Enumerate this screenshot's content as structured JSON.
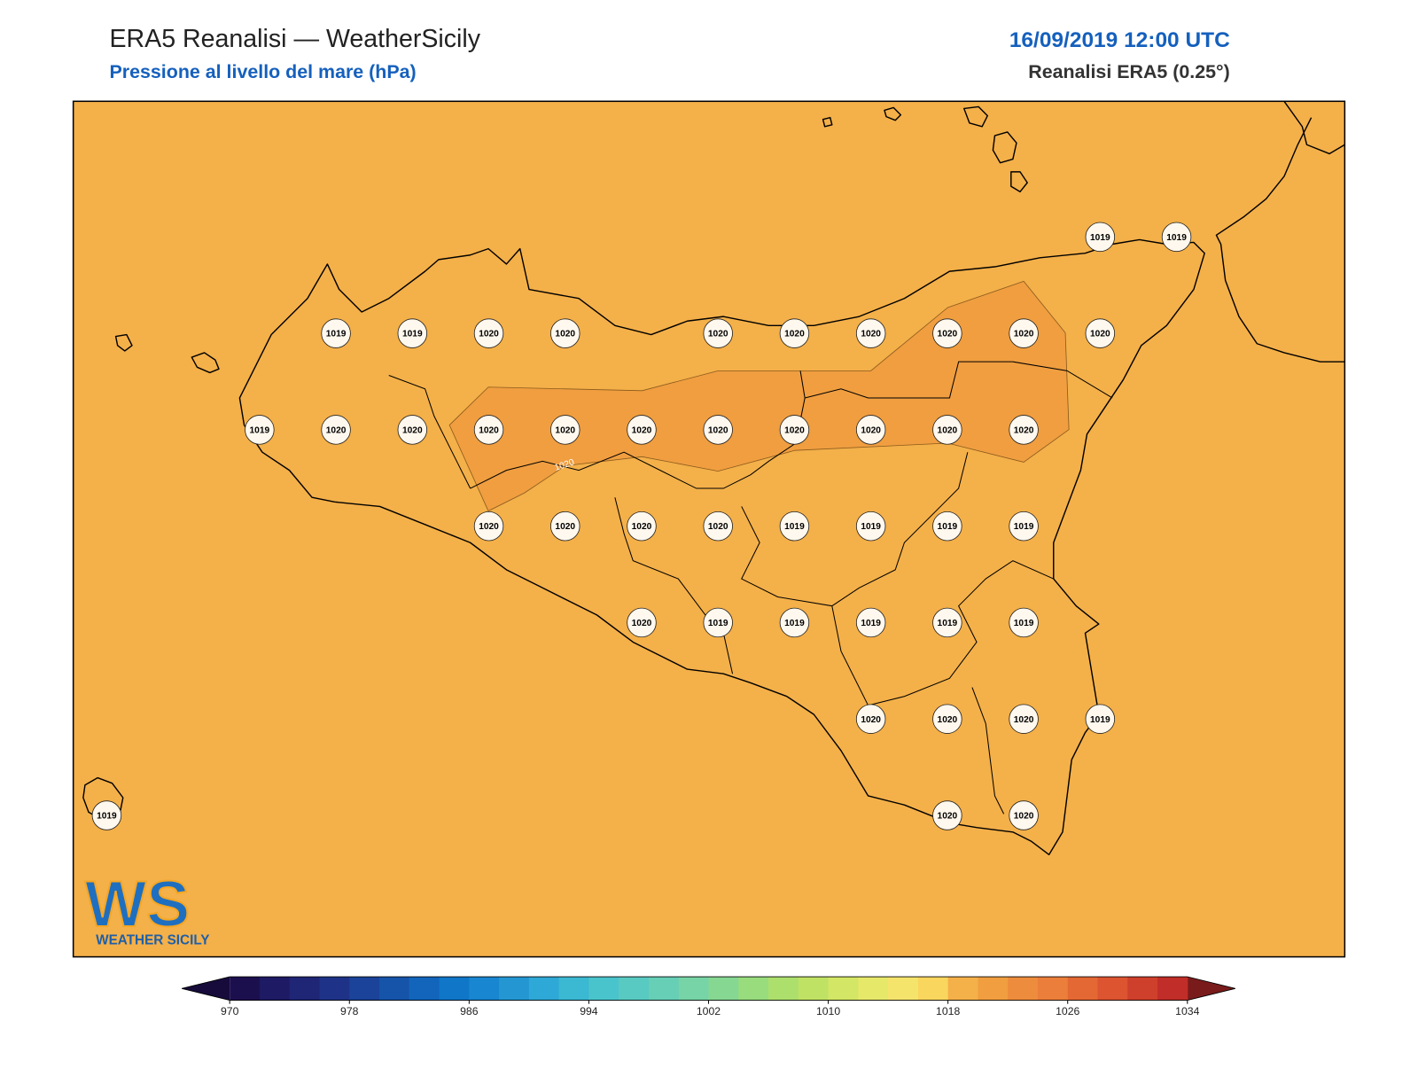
{
  "header": {
    "title": "ERA5 Reanalisi — WeatherSicily",
    "subtitle": "Pressione al livello del mare (hPa)",
    "datetime": "16/09/2019 12:00 UTC",
    "source": "Reanalisi ERA5 (0.25°)"
  },
  "stations": [
    1019,
    1019,
    1019,
    1019,
    1020,
    1020,
    1020,
    1020,
    1020,
    1020,
    1020,
    1020,
    1019,
    1020,
    1020,
    1020,
    1020,
    1020,
    1020,
    1020,
    1020,
    1020,
    1020,
    1020,
    1020,
    1020,
    1020,
    1019,
    1019,
    1019,
    1019,
    1020,
    1019,
    1019,
    1019,
    1019,
    1019,
    1020,
    1020,
    1020,
    1019,
    1019,
    1020,
    1020
  ],
  "contour_label": 1020,
  "colorbar": {
    "lim": [
      970,
      1034
    ],
    "ticks": [
      970,
      978,
      986,
      994,
      1002,
      1010,
      1018,
      1026,
      1034
    ],
    "colors": [
      "#1c0f4e",
      "#1e1a64",
      "#1f2676",
      "#1e3387",
      "#1a4399",
      "#1654aa",
      "#1265bb",
      "#0f76c8",
      "#1886d0",
      "#2497d3",
      "#2ea8d6",
      "#3bb8d2",
      "#4ac4cc",
      "#58cac2",
      "#66cfb6",
      "#76d4a6",
      "#86d792",
      "#98dc7e",
      "#acdf6c",
      "#c0e264",
      "#d4e665",
      "#e6e86a",
      "#f5e46c",
      "#f9d65e",
      "#f4b049",
      "#f09e40",
      "#ed8c3c",
      "#eb7e3a",
      "#e46834",
      "#dc5430",
      "#cf402c",
      "#c12d28"
    ],
    "under_color": "#160b3a",
    "over_color": "#7a1b1b"
  },
  "logo": {
    "mark": "WS",
    "text": "WEATHER SICILY"
  }
}
